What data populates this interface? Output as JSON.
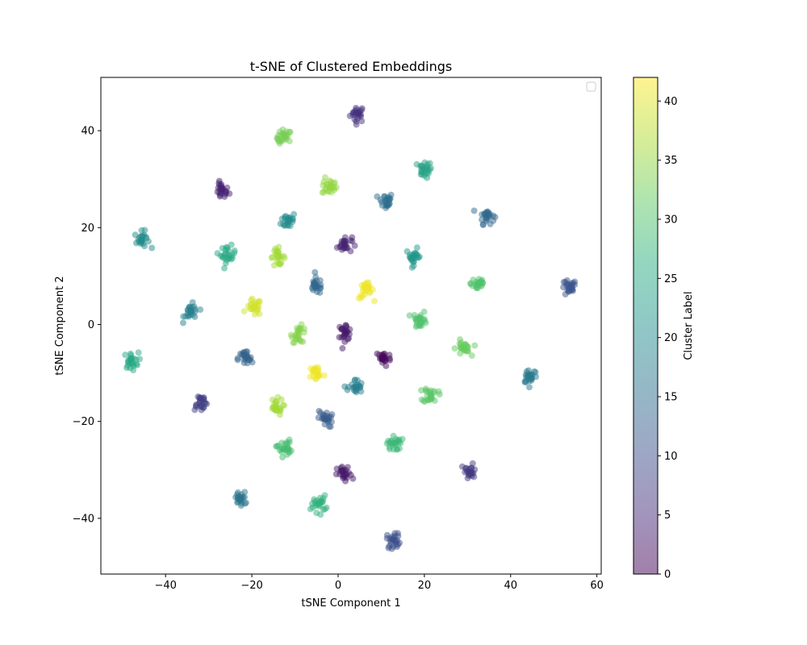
{
  "chart_data": {
    "type": "scatter",
    "title": "t-SNE of Clustered Embeddings",
    "xlabel": "tSNE Component 1",
    "ylabel": "tSNE Component 2",
    "xlim": [
      -55,
      61
    ],
    "ylim": [
      -51.5,
      51
    ],
    "xticks": [
      -40,
      -20,
      0,
      20,
      40,
      60
    ],
    "yticks": [
      -40,
      -20,
      0,
      20,
      40
    ],
    "grid": false,
    "legend": {
      "placement": "top-right",
      "entries": []
    },
    "colorbar": {
      "label": "Cluster Label",
      "range": [
        0,
        42
      ],
      "ticks": [
        0,
        5,
        10,
        15,
        20,
        25,
        30,
        35,
        40
      ],
      "colormap": "viridis",
      "alpha": 0.5
    },
    "marker_alpha": 0.5,
    "clusters": [
      {
        "x": 4.5,
        "y": 43.5,
        "label": 6
      },
      {
        "x": -12.5,
        "y": 38.5,
        "label": 33
      },
      {
        "x": 20,
        "y": 32,
        "label": 24
      },
      {
        "x": -27,
        "y": 27.5,
        "label": 4
      },
      {
        "x": -2,
        "y": 28.5,
        "label": 35
      },
      {
        "x": 11,
        "y": 25.5,
        "label": 15
      },
      {
        "x": -11.5,
        "y": 21.5,
        "label": 20
      },
      {
        "x": 34.5,
        "y": 22.5,
        "label": 14
      },
      {
        "x": -45.5,
        "y": 17.5,
        "label": 20
      },
      {
        "x": 1.5,
        "y": 16.5,
        "label": 4
      },
      {
        "x": -25.5,
        "y": 14.5,
        "label": 25
      },
      {
        "x": 17.5,
        "y": 14,
        "label": 22
      },
      {
        "x": -14,
        "y": 14,
        "label": 36
      },
      {
        "x": 6.5,
        "y": 7,
        "label": 41
      },
      {
        "x": 32.5,
        "y": 8.5,
        "label": 30
      },
      {
        "x": -5,
        "y": 8,
        "label": 14
      },
      {
        "x": 53.5,
        "y": 7.5,
        "label": 11
      },
      {
        "x": -19.5,
        "y": 3.5,
        "label": 39
      },
      {
        "x": -34,
        "y": 2.5,
        "label": 18
      },
      {
        "x": 19,
        "y": 1,
        "label": 30
      },
      {
        "x": -9,
        "y": -2,
        "label": 34
      },
      {
        "x": 1.5,
        "y": -1.5,
        "label": 3
      },
      {
        "x": 29,
        "y": -5,
        "label": 32
      },
      {
        "x": -48,
        "y": -7.5,
        "label": 25
      },
      {
        "x": -21.5,
        "y": -7,
        "label": 13
      },
      {
        "x": 10.5,
        "y": -7,
        "label": 1
      },
      {
        "x": -5,
        "y": -10,
        "label": 41
      },
      {
        "x": 44.5,
        "y": -10.5,
        "label": 17
      },
      {
        "x": 4,
        "y": -13,
        "label": 18
      },
      {
        "x": 21.5,
        "y": -14.5,
        "label": 31
      },
      {
        "x": -32,
        "y": -16,
        "label": 8
      },
      {
        "x": -14.5,
        "y": -17,
        "label": 36
      },
      {
        "x": -3,
        "y": -19.5,
        "label": 12
      },
      {
        "x": 13,
        "y": -24.5,
        "label": 28
      },
      {
        "x": -12.5,
        "y": -25.5,
        "label": 29
      },
      {
        "x": 30.5,
        "y": -30.5,
        "label": 7
      },
      {
        "x": 1.5,
        "y": -31,
        "label": 3
      },
      {
        "x": -22.5,
        "y": -36,
        "label": 16
      },
      {
        "x": -4.5,
        "y": -37,
        "label": 27
      },
      {
        "x": 13,
        "y": -44.5,
        "label": 10
      }
    ]
  }
}
